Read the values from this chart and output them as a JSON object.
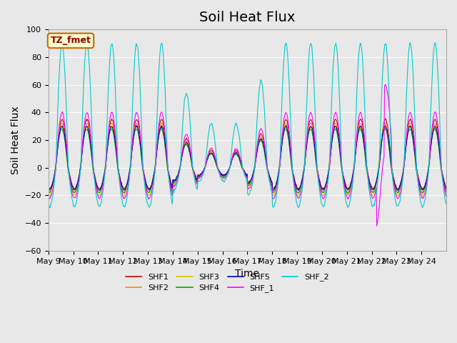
{
  "title": "Soil Heat Flux",
  "xlabel": "Time",
  "ylabel": "Soil Heat Flux",
  "ylim": [
    -60,
    100
  ],
  "x_tick_labels": [
    "May 9",
    "May 10",
    "May 11",
    "May 12",
    "May 13",
    "May 14",
    "May 15",
    "May 16",
    "May 17",
    "May 18",
    "May 19",
    "May 20",
    "May 21",
    "May 22",
    "May 23",
    "May 24"
  ],
  "background_color": "#e8e8e8",
  "plot_bg_color": "#e8e8e8",
  "annotation_text": "TZ_fmet",
  "annotation_bg": "#ffffcc",
  "annotation_border": "#cc6600",
  "series_colors": {
    "SHF1": "#cc0000",
    "SHF2": "#ff8800",
    "SHF3": "#cccc00",
    "SHF4": "#00aa00",
    "SHF5": "#0000cc",
    "SHF_1": "#ff00ff",
    "SHF_2": "#00cccc"
  },
  "title_fontsize": 14,
  "axis_label_fontsize": 10,
  "tick_fontsize": 8
}
